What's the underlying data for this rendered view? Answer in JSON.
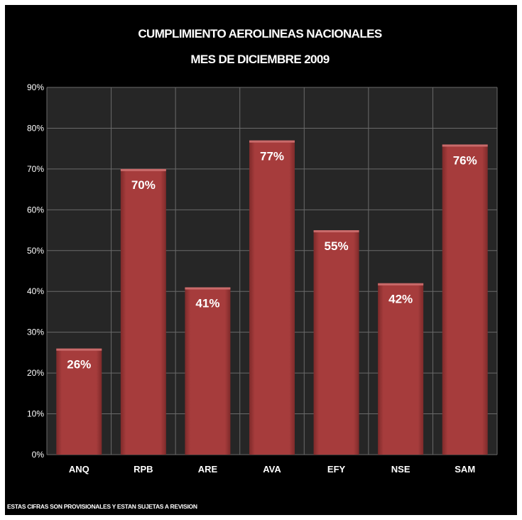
{
  "chart_data": {
    "type": "bar",
    "title": "CUMPLIMIENTO AEROLINEAS NACIONALES",
    "subtitle": "MES DE DICIEMBRE 2009",
    "categories": [
      "ANQ",
      "RPB",
      "ARE",
      "AVA",
      "EFY",
      "NSE",
      "SAM"
    ],
    "values": [
      26,
      70,
      41,
      77,
      55,
      42,
      76
    ],
    "data_labels": [
      "26%",
      "70%",
      "41%",
      "77%",
      "55%",
      "42%",
      "76%"
    ],
    "ylim": [
      0,
      90
    ],
    "y_ticks": [
      "0%",
      "10%",
      "20%",
      "30%",
      "40%",
      "50%",
      "60%",
      "70%",
      "80%",
      "90%"
    ],
    "xlabel": "",
    "ylabel": "",
    "grid": true,
    "bar_color": "#a63c3c",
    "background_color": "#000000",
    "plot_background_color": "#262626",
    "footnote": "ESTAS CIFRAS SON PROVISIONALES Y ESTAN SUJETAS A REVISION"
  }
}
